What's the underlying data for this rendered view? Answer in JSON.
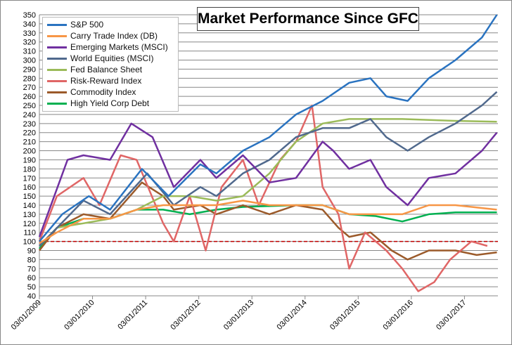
{
  "chart_data": {
    "type": "line",
    "title": "Market Performance Since GFC",
    "xlabel": "",
    "ylabel": "",
    "ylim": [
      40,
      350
    ],
    "xlim": [
      2009.17,
      2017.8
    ],
    "y_ticks": [
      40,
      50,
      60,
      70,
      80,
      90,
      100,
      110,
      120,
      130,
      140,
      150,
      160,
      170,
      180,
      190,
      200,
      210,
      220,
      230,
      240,
      250,
      260,
      270,
      280,
      290,
      300,
      310,
      320,
      330,
      340,
      350
    ],
    "x_ticks": [
      {
        "label": "03/01/2009",
        "t": 2009.17
      },
      {
        "label": "03/01/2010",
        "t": 2010.17
      },
      {
        "label": "03/01/2011",
        "t": 2011.17
      },
      {
        "label": "03/01/2012",
        "t": 2012.17
      },
      {
        "label": "03/01/2013",
        "t": 2013.17
      },
      {
        "label": "03/01/2014",
        "t": 2014.17
      },
      {
        "label": "03/01/2015",
        "t": 2015.17
      },
      {
        "label": "03/01/2016",
        "t": 2016.17
      },
      {
        "label": "03/01/2017",
        "t": 2017.17
      }
    ],
    "grid": true,
    "reference_line": {
      "value": 100,
      "color": "#c00000",
      "style": "dashed"
    },
    "legend_position": "top-left",
    "series": [
      {
        "name": "S&P 500",
        "color": "#2a73c0",
        "points": [
          [
            2009.17,
            100
          ],
          [
            2009.6,
            130
          ],
          [
            2010.1,
            150
          ],
          [
            2010.5,
            135
          ],
          [
            2011.1,
            180
          ],
          [
            2011.6,
            150
          ],
          [
            2012.2,
            185
          ],
          [
            2012.5,
            175
          ],
          [
            2013.0,
            200
          ],
          [
            2013.5,
            215
          ],
          [
            2014.0,
            240
          ],
          [
            2014.5,
            255
          ],
          [
            2015.0,
            275
          ],
          [
            2015.4,
            280
          ],
          [
            2015.7,
            260
          ],
          [
            2016.1,
            255
          ],
          [
            2016.5,
            280
          ],
          [
            2017.0,
            300
          ],
          [
            2017.5,
            325
          ],
          [
            2017.78,
            350
          ]
        ]
      },
      {
        "name": "Carry Trade Index (DB)",
        "color": "#f79646",
        "points": [
          [
            2009.17,
            98
          ],
          [
            2009.5,
            110
          ],
          [
            2010.0,
            125
          ],
          [
            2010.5,
            125
          ],
          [
            2011.0,
            135
          ],
          [
            2011.5,
            140
          ],
          [
            2012.0,
            140
          ],
          [
            2012.5,
            140
          ],
          [
            2013.0,
            145
          ],
          [
            2013.5,
            140
          ],
          [
            2014.0,
            140
          ],
          [
            2014.5,
            140
          ],
          [
            2015.0,
            130
          ],
          [
            2015.5,
            130
          ],
          [
            2016.0,
            130
          ],
          [
            2016.5,
            140
          ],
          [
            2017.0,
            140
          ],
          [
            2017.78,
            135
          ]
        ]
      },
      {
        "name": "Emerging Markets (MSCI)",
        "color": "#7030a0",
        "points": [
          [
            2009.17,
            105
          ],
          [
            2009.7,
            190
          ],
          [
            2010.0,
            195
          ],
          [
            2010.5,
            190
          ],
          [
            2010.9,
            230
          ],
          [
            2011.3,
            215
          ],
          [
            2011.7,
            160
          ],
          [
            2012.2,
            190
          ],
          [
            2012.5,
            170
          ],
          [
            2013.0,
            195
          ],
          [
            2013.5,
            165
          ],
          [
            2014.0,
            170
          ],
          [
            2014.5,
            210
          ],
          [
            2014.7,
            200
          ],
          [
            2015.0,
            180
          ],
          [
            2015.4,
            190
          ],
          [
            2015.7,
            160
          ],
          [
            2016.1,
            140
          ],
          [
            2016.5,
            170
          ],
          [
            2017.0,
            175
          ],
          [
            2017.5,
            200
          ],
          [
            2017.78,
            220
          ]
        ]
      },
      {
        "name": "World Equities (MSCI)",
        "color": "#50698d",
        "points": [
          [
            2009.17,
            95
          ],
          [
            2010.0,
            145
          ],
          [
            2010.5,
            130
          ],
          [
            2011.2,
            175
          ],
          [
            2011.7,
            140
          ],
          [
            2012.2,
            160
          ],
          [
            2012.5,
            150
          ],
          [
            2013.0,
            175
          ],
          [
            2013.5,
            190
          ],
          [
            2014.0,
            215
          ],
          [
            2014.5,
            225
          ],
          [
            2015.0,
            225
          ],
          [
            2015.4,
            235
          ],
          [
            2015.7,
            215
          ],
          [
            2016.1,
            200
          ],
          [
            2016.5,
            215
          ],
          [
            2017.0,
            230
          ],
          [
            2017.5,
            250
          ],
          [
            2017.78,
            265
          ]
        ]
      },
      {
        "name": "Fed Balance Sheet",
        "color": "#9bbb59",
        "points": [
          [
            2009.17,
            95
          ],
          [
            2009.5,
            115
          ],
          [
            2010.0,
            120
          ],
          [
            2010.5,
            125
          ],
          [
            2011.0,
            135
          ],
          [
            2011.5,
            150
          ],
          [
            2012.0,
            150
          ],
          [
            2012.5,
            145
          ],
          [
            2013.0,
            150
          ],
          [
            2013.5,
            175
          ],
          [
            2014.0,
            210
          ],
          [
            2014.5,
            230
          ],
          [
            2015.0,
            235
          ],
          [
            2016.0,
            235
          ],
          [
            2017.0,
            233
          ],
          [
            2017.78,
            232
          ]
        ]
      },
      {
        "name": "Risk-Reward Index",
        "color": "#e06666",
        "points": [
          [
            2009.17,
            100
          ],
          [
            2009.5,
            150
          ],
          [
            2010.0,
            170
          ],
          [
            2010.3,
            140
          ],
          [
            2010.7,
            195
          ],
          [
            2011.0,
            190
          ],
          [
            2011.5,
            120
          ],
          [
            2011.7,
            100
          ],
          [
            2012.0,
            150
          ],
          [
            2012.3,
            90
          ],
          [
            2012.6,
            160
          ],
          [
            2013.0,
            190
          ],
          [
            2013.3,
            140
          ],
          [
            2013.7,
            190
          ],
          [
            2014.0,
            210
          ],
          [
            2014.3,
            250
          ],
          [
            2014.5,
            160
          ],
          [
            2014.8,
            130
          ],
          [
            2015.0,
            70
          ],
          [
            2015.3,
            110
          ],
          [
            2015.7,
            90
          ],
          [
            2016.0,
            70
          ],
          [
            2016.3,
            45
          ],
          [
            2016.6,
            55
          ],
          [
            2016.9,
            80
          ],
          [
            2017.3,
            100
          ],
          [
            2017.6,
            95
          ]
        ]
      },
      {
        "name": "Commodity Index",
        "color": "#9b5a2a",
        "points": [
          [
            2009.17,
            90
          ],
          [
            2009.5,
            115
          ],
          [
            2010.0,
            130
          ],
          [
            2010.5,
            125
          ],
          [
            2011.1,
            165
          ],
          [
            2011.5,
            150
          ],
          [
            2011.7,
            135
          ],
          [
            2012.2,
            140
          ],
          [
            2012.5,
            130
          ],
          [
            2013.0,
            140
          ],
          [
            2013.5,
            130
          ],
          [
            2014.0,
            140
          ],
          [
            2014.5,
            135
          ],
          [
            2014.8,
            115
          ],
          [
            2015.0,
            105
          ],
          [
            2015.4,
            110
          ],
          [
            2015.8,
            90
          ],
          [
            2016.1,
            80
          ],
          [
            2016.5,
            90
          ],
          [
            2017.0,
            90
          ],
          [
            2017.4,
            85
          ],
          [
            2017.78,
            88
          ]
        ]
      },
      {
        "name": "High Yield Corp Debt",
        "color": "#00b050",
        "points": [
          [
            2009.17,
            92
          ],
          [
            2009.5,
            115
          ],
          [
            2010.0,
            125
          ],
          [
            2010.5,
            125
          ],
          [
            2011.0,
            135
          ],
          [
            2011.5,
            135
          ],
          [
            2012.0,
            130
          ],
          [
            2012.5,
            135
          ],
          [
            2013.0,
            138
          ],
          [
            2014.0,
            140
          ],
          [
            2014.5,
            140
          ],
          [
            2015.0,
            130
          ],
          [
            2015.5,
            128
          ],
          [
            2016.0,
            122
          ],
          [
            2016.5,
            130
          ],
          [
            2017.0,
            132
          ],
          [
            2017.78,
            132
          ]
        ]
      }
    ]
  }
}
